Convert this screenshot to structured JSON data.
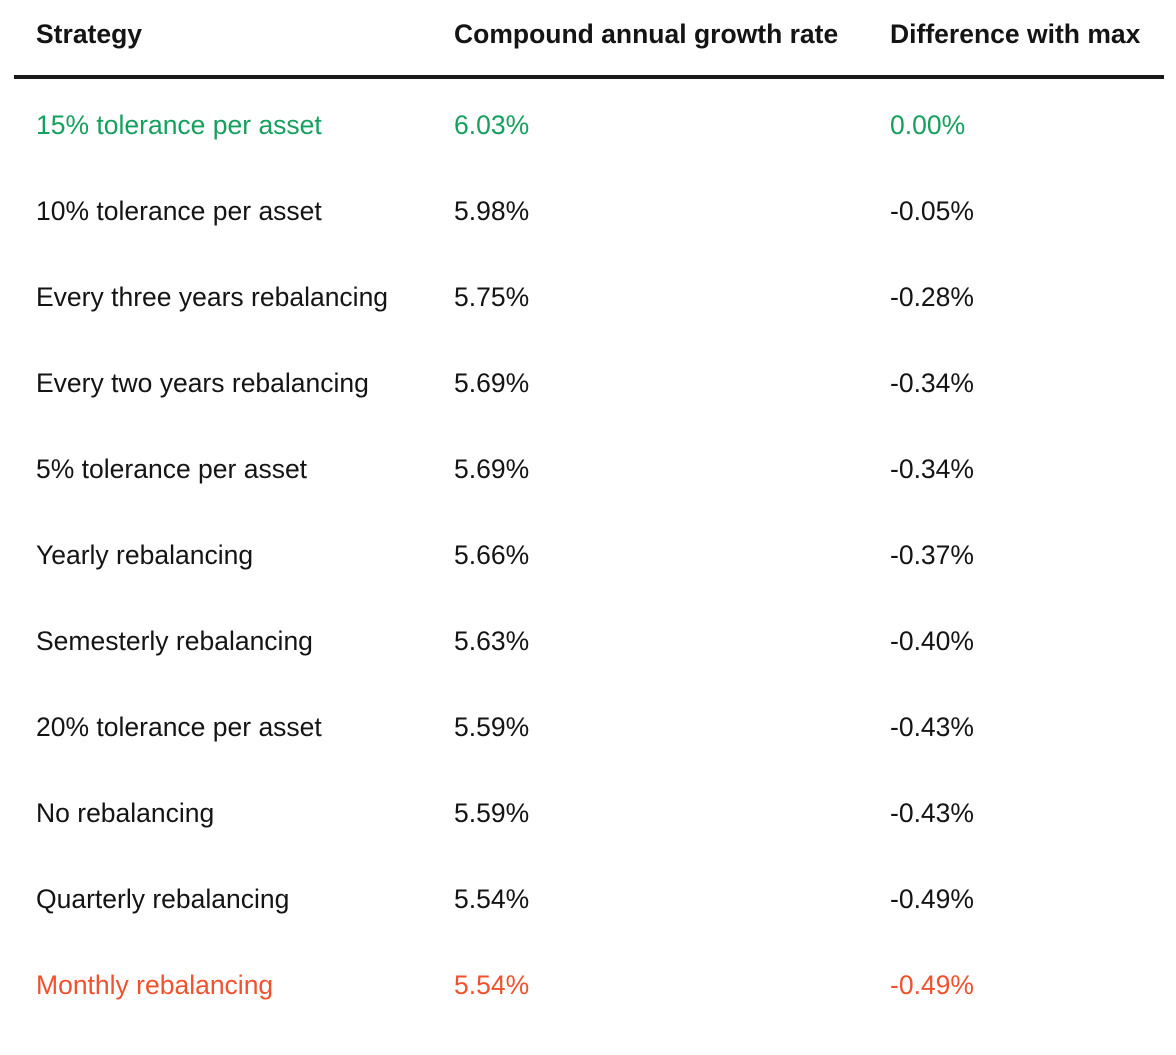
{
  "table": {
    "headers": {
      "strategy": "Strategy",
      "cagr": "Compound annual growth rate",
      "diff": "Difference with max"
    },
    "rows": [
      {
        "strategy": "15% tolerance per asset",
        "cagr": "6.03%",
        "diff": "0.00%",
        "highlight": "best"
      },
      {
        "strategy": "10% tolerance per asset",
        "cagr": "5.98%",
        "diff": "-0.05%",
        "highlight": ""
      },
      {
        "strategy": "Every three years rebalancing",
        "cagr": "5.75%",
        "diff": "-0.28%",
        "highlight": ""
      },
      {
        "strategy": "Every two years rebalancing",
        "cagr": "5.69%",
        "diff": "-0.34%",
        "highlight": ""
      },
      {
        "strategy": "5% tolerance per asset",
        "cagr": "5.69%",
        "diff": "-0.34%",
        "highlight": ""
      },
      {
        "strategy": "Yearly rebalancing",
        "cagr": "5.66%",
        "diff": "-0.37%",
        "highlight": ""
      },
      {
        "strategy": "Semesterly rebalancing",
        "cagr": "5.63%",
        "diff": "-0.40%",
        "highlight": ""
      },
      {
        "strategy": "20% tolerance per asset",
        "cagr": "5.59%",
        "diff": "-0.43%",
        "highlight": ""
      },
      {
        "strategy": "No rebalancing",
        "cagr": "5.59%",
        "diff": "-0.43%",
        "highlight": ""
      },
      {
        "strategy": "Quarterly rebalancing",
        "cagr": "5.54%",
        "diff": "-0.49%",
        "highlight": ""
      },
      {
        "strategy": "Monthly rebalancing",
        "cagr": "5.54%",
        "diff": "-0.49%",
        "highlight": "worst"
      }
    ]
  },
  "colors": {
    "text": "#141414",
    "best": "#16a05d",
    "worst": "#f0522f",
    "rule": "#1a1a1a"
  }
}
